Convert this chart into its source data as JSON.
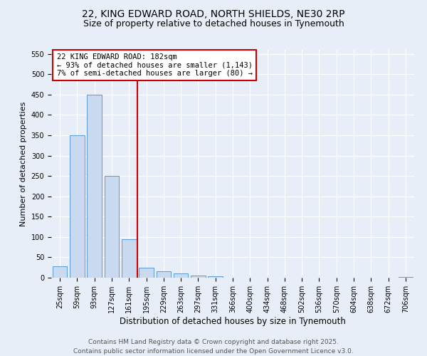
{
  "title": "22, KING EDWARD ROAD, NORTH SHIELDS, NE30 2RP",
  "subtitle": "Size of property relative to detached houses in Tynemouth",
  "xlabel": "Distribution of detached houses by size in Tynemouth",
  "ylabel": "Number of detached properties",
  "bar_labels": [
    "25sqm",
    "59sqm",
    "93sqm",
    "127sqm",
    "161sqm",
    "195sqm",
    "229sqm",
    "263sqm",
    "297sqm",
    "331sqm",
    "366sqm",
    "400sqm",
    "434sqm",
    "468sqm",
    "502sqm",
    "536sqm",
    "570sqm",
    "604sqm",
    "638sqm",
    "672sqm",
    "706sqm"
  ],
  "bar_values": [
    28,
    350,
    450,
    250,
    95,
    25,
    15,
    10,
    5,
    3,
    0,
    0,
    0,
    0,
    0,
    0,
    0,
    0,
    0,
    0,
    2
  ],
  "bar_color": "#c9d9f0",
  "bar_edge_color": "#5b9bd5",
  "background_color": "#e8eef8",
  "ylim": [
    0,
    560
  ],
  "yticks": [
    0,
    50,
    100,
    150,
    200,
    250,
    300,
    350,
    400,
    450,
    500,
    550
  ],
  "vline_color": "#cc0000",
  "annotation_title": "22 KING EDWARD ROAD: 182sqm",
  "annotation_line1": "← 93% of detached houses are smaller (1,143)",
  "annotation_line2": "7% of semi-detached houses are larger (80) →",
  "annotation_box_color": "#ffffff",
  "annotation_box_edge": "#cc0000",
  "footer_line1": "Contains HM Land Registry data © Crown copyright and database right 2025.",
  "footer_line2": "Contains public sector information licensed under the Open Government Licence v3.0.",
  "title_fontsize": 10,
  "subtitle_fontsize": 9,
  "xlabel_fontsize": 8.5,
  "ylabel_fontsize": 8,
  "tick_fontsize": 7,
  "footer_fontsize": 6.5,
  "annotation_fontsize": 7.5
}
